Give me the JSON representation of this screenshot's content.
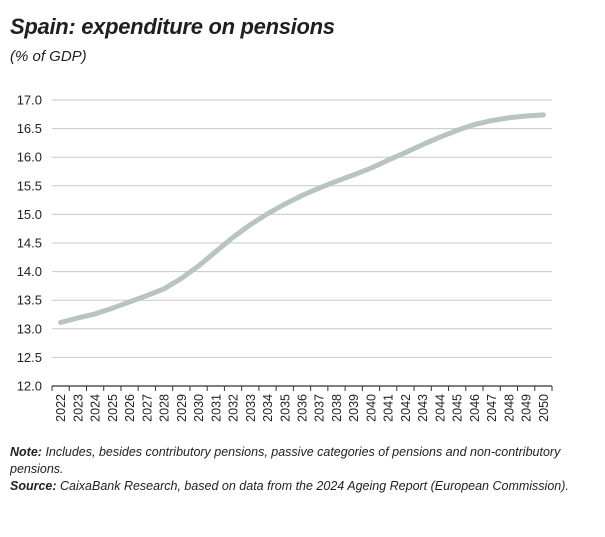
{
  "title": "Spain: expenditure on pensions",
  "subtitle": "(% of GDP)",
  "note_label": "Note:",
  "note_text": "Includes, besides contributory pensions, passive categories of pensions and non-contributory pensions.",
  "source_label": "Source:",
  "source_text": "CaixaBank Research, based on data from the 2024 Ageing Report (European Commission).",
  "colors": {
    "line": "#b8c3c3",
    "grid": "#c8c8c8",
    "axis": "#333333"
  },
  "chart_data": {
    "type": "line",
    "title": "Spain: expenditure on pensions",
    "ylabel": "(% of GDP)",
    "ylim": [
      12.0,
      17.0
    ],
    "yticks": [
      "12.0",
      "12.5",
      "13.0",
      "13.5",
      "14.0",
      "14.5",
      "15.0",
      "15.5",
      "16.0",
      "16.5",
      "17.0"
    ],
    "grid": true,
    "categories": [
      "2022",
      "2023",
      "2024",
      "2025",
      "2026",
      "2027",
      "2028",
      "2029",
      "2030",
      "2031",
      "2032",
      "2033",
      "2034",
      "2035",
      "2036",
      "2037",
      "2038",
      "2039",
      "2040",
      "2041",
      "2042",
      "2043",
      "2044",
      "2045",
      "2046",
      "2047",
      "2048",
      "2049",
      "2050"
    ],
    "values": [
      13.11,
      13.19,
      13.26,
      13.36,
      13.47,
      13.58,
      13.7,
      13.88,
      14.1,
      14.35,
      14.6,
      14.82,
      15.01,
      15.18,
      15.33,
      15.46,
      15.58,
      15.69,
      15.81,
      15.95,
      16.08,
      16.22,
      16.35,
      16.47,
      16.57,
      16.64,
      16.69,
      16.72,
      16.74
    ]
  }
}
